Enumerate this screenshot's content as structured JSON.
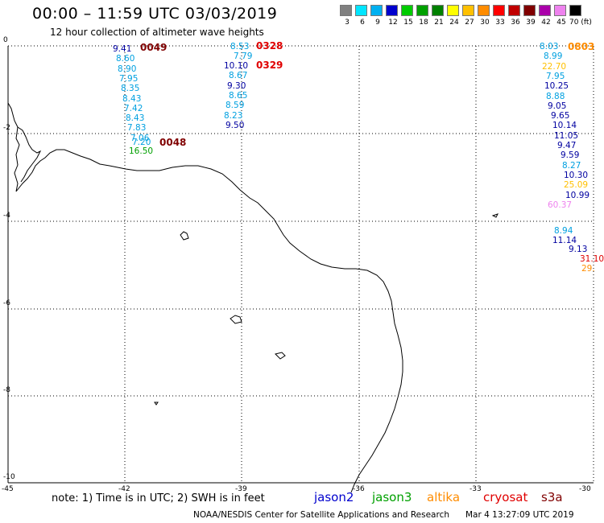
{
  "title": "00:00 – 11:59 UTC 03/03/2019",
  "subtitle": "12 hour collection of altimeter wave heights",
  "colorbar": {
    "labels": [
      "3",
      "6",
      "9",
      "12",
      "15",
      "18",
      "21",
      "24",
      "27",
      "30",
      "33",
      "36",
      "39",
      "42",
      "45",
      "70 (ft)"
    ],
    "colors": [
      "#808080",
      "#00e5ff",
      "#00b0f0",
      "#0000cd",
      "#00cc00",
      "#00a000",
      "#008000",
      "#ffff00",
      "#ffc000",
      "#ff8c00",
      "#ff0000",
      "#c00000",
      "#800000",
      "#aa00aa",
      "#ee82ee",
      "#000000"
    ]
  },
  "axes": {
    "x_ticks": [
      "-45",
      "-42",
      "-39",
      "-36",
      "-33",
      "-30"
    ],
    "y_ticks": [
      "0",
      "-2",
      "-4",
      "-6",
      "-8",
      "-10"
    ]
  },
  "tracks": [
    {
      "time": "0049",
      "time_color": "#800000",
      "values": [
        {
          "v": "9.41",
          "c": "#0000a0"
        },
        {
          "v": "8.60",
          "c": "#00a0e0"
        },
        {
          "v": "8.90",
          "c": "#00a0e0"
        },
        {
          "v": "7.95",
          "c": "#00a0e0"
        },
        {
          "v": "8.35",
          "c": "#00a0e0"
        },
        {
          "v": "8.43",
          "c": "#00a0e0"
        },
        {
          "v": "7.42",
          "c": "#00a0e0"
        },
        {
          "v": "8.43",
          "c": "#00a0e0"
        },
        {
          "v": "7.83",
          "c": "#00a0e0"
        },
        {
          "v": "7.06",
          "c": "#00a0e0"
        },
        {
          "v": "7.20",
          "c": "#00a0e0"
        }
      ]
    },
    {
      "time": "0048",
      "time_color": "#800000",
      "values": [
        {
          "v": "16.50",
          "c": "#00a000"
        }
      ]
    },
    {
      "time": "0328",
      "time_color": "#e00000",
      "values": [
        {
          "v": "8.53",
          "c": "#00a0e0"
        },
        {
          "v": "7.79",
          "c": "#00a0e0"
        }
      ]
    },
    {
      "time": "0329",
      "time_color": "#e00000",
      "values": [
        {
          "v": "10.10",
          "c": "#0000a0"
        },
        {
          "v": "8.67",
          "c": "#00a0e0"
        },
        {
          "v": "9.30",
          "c": "#0000a0"
        },
        {
          "v": "8.65",
          "c": "#00a0e0"
        },
        {
          "v": "8.59",
          "c": "#00a0e0"
        },
        {
          "v": "8.23",
          "c": "#00a0e0"
        },
        {
          "v": "9.50",
          "c": "#0000a0"
        }
      ]
    },
    {
      "time": "0803",
      "time_color": "#ff8c00",
      "values": [
        {
          "v": "8.03",
          "c": "#00a0e0"
        },
        {
          "v": "8.99",
          "c": "#00a0e0"
        },
        {
          "v": "22.70",
          "c": "#ffc000"
        },
        {
          "v": "7.95",
          "c": "#00a0e0"
        },
        {
          "v": "10.25",
          "c": "#0000a0"
        },
        {
          "v": "8.88",
          "c": "#00a0e0"
        },
        {
          "v": "9.05",
          "c": "#0000a0"
        },
        {
          "v": "9.65",
          "c": "#0000a0"
        },
        {
          "v": "10.14",
          "c": "#0000a0"
        },
        {
          "v": "11.05",
          "c": "#0000a0"
        },
        {
          "v": "9.47",
          "c": "#0000a0"
        },
        {
          "v": "9.59",
          "c": "#0000a0"
        },
        {
          "v": "8.27",
          "c": "#00a0e0"
        },
        {
          "v": "10.30",
          "c": "#0000a0"
        },
        {
          "v": "25.09",
          "c": "#ffc000"
        },
        {
          "v": "10.99",
          "c": "#0000a0"
        },
        {
          "v": "60.37",
          "c": "#ee82ee"
        },
        {
          "v": "8.94",
          "c": "#00a0e0"
        },
        {
          "v": "11.14",
          "c": "#0000a0"
        },
        {
          "v": "9.13",
          "c": "#0000a0"
        },
        {
          "v": "31.10",
          "c": "#e00000"
        },
        {
          "v": "29.",
          "c": "#ff8c00"
        }
      ]
    }
  ],
  "note": "note:  1) Time is in UTC;  2) SWH is in feet",
  "legend": [
    {
      "name": "jason2",
      "color": "#0000cd"
    },
    {
      "name": "jason3",
      "color": "#00a000"
    },
    {
      "name": "altika",
      "color": "#ff8c00"
    },
    {
      "name": "cryosat",
      "color": "#e00000"
    },
    {
      "name": "s3a",
      "color": "#800000"
    }
  ],
  "footer": "NOAA/NESDIS Center for Satellite Applications and Research",
  "footer_date": "Mar  4 13:27:09 UTC 2019"
}
